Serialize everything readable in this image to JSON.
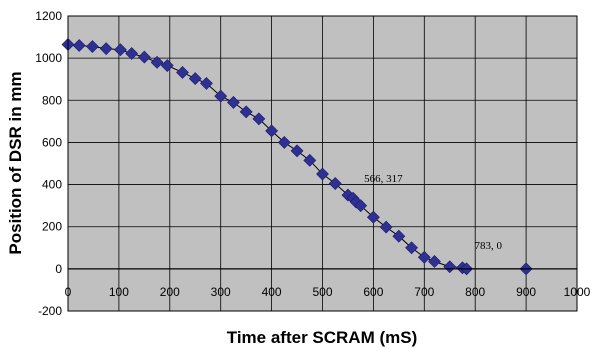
{
  "chart_data": {
    "type": "scatter",
    "title": "",
    "xlabel": "Time after SCRAM (mS)",
    "ylabel": "Position of DSR in mm",
    "xlim": [
      0,
      1000
    ],
    "ylim": [
      -200,
      1200
    ],
    "x_ticks": [
      0,
      100,
      200,
      300,
      400,
      500,
      600,
      700,
      800,
      900,
      1000
    ],
    "y_ticks": [
      -200,
      0,
      200,
      400,
      600,
      800,
      1000,
      1200
    ],
    "grid": true,
    "series": [
      {
        "color": "#2e3192",
        "marker": "diamond",
        "line": true,
        "points": [
          [
            0,
            1065
          ],
          [
            22,
            1060
          ],
          [
            48,
            1055
          ],
          [
            75,
            1045
          ],
          [
            103,
            1040
          ],
          [
            125,
            1022
          ],
          [
            150,
            1005
          ],
          [
            175,
            980
          ],
          [
            195,
            965
          ],
          [
            225,
            932
          ],
          [
            250,
            903
          ],
          [
            272,
            880
          ],
          [
            300,
            820
          ],
          [
            325,
            790
          ],
          [
            350,
            745
          ],
          [
            375,
            712
          ],
          [
            400,
            655
          ],
          [
            425,
            600
          ],
          [
            450,
            560
          ],
          [
            475,
            515
          ],
          [
            500,
            450
          ],
          [
            525,
            405
          ],
          [
            550,
            350
          ],
          [
            560,
            335
          ],
          [
            566,
            317
          ],
          [
            575,
            300
          ],
          [
            600,
            245
          ],
          [
            625,
            198
          ],
          [
            650,
            155
          ],
          [
            675,
            100
          ],
          [
            700,
            55
          ],
          [
            720,
            35
          ],
          [
            750,
            10
          ],
          [
            775,
            5
          ],
          [
            783,
            0
          ],
          [
            900,
            0
          ]
        ]
      }
    ],
    "annotations": [
      {
        "text": "566, 317",
        "x": 566,
        "y": 317
      },
      {
        "text": "783, 0",
        "x": 783,
        "y": 0
      }
    ]
  }
}
